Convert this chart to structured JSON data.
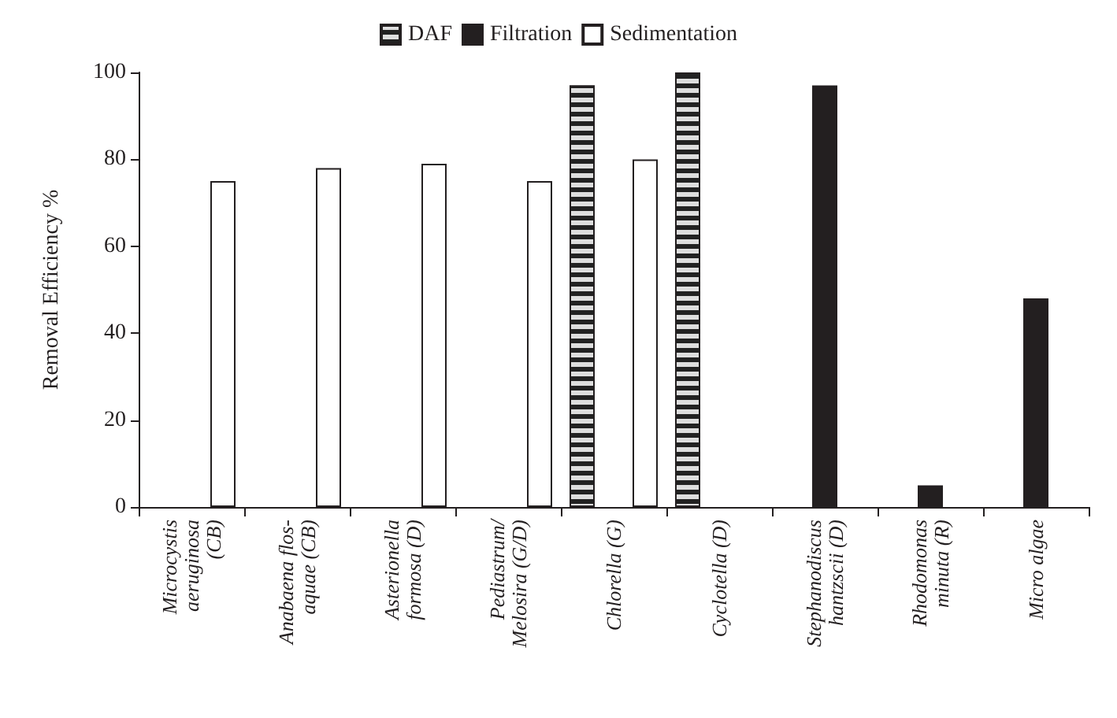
{
  "chart_data": {
    "type": "bar",
    "ylabel": "Removal Efficiency %",
    "categories": [
      "Microcystis\naeruginosa\n(CB)",
      "Anabaena flos-\naquae (CB)",
      "Asterionella\nformosa (D)",
      "Pediastrum/\nMelosira (G/D)",
      "Chlorella (G)",
      "Cyclotella (D)",
      "Stephanodiscus\nhantzscii (D)",
      "Rhodomonas\nminuta (R)",
      "Micro algae"
    ],
    "series": [
      {
        "name": "DAF",
        "color": "#222222",
        "values": [
          null,
          null,
          null,
          null,
          97,
          100,
          null,
          null,
          null
        ]
      },
      {
        "name": "Filtration",
        "color": "#231f20",
        "values": [
          null,
          null,
          null,
          null,
          null,
          null,
          97,
          5,
          48
        ]
      },
      {
        "name": "Sedimentation",
        "color": "#ffffff",
        "values": [
          75,
          78,
          79,
          75,
          80,
          null,
          null,
          null,
          null
        ]
      }
    ],
    "ylim": [
      0,
      100
    ],
    "yticks": [
      0,
      20,
      40,
      60,
      80,
      100
    ],
    "grid": false,
    "legend": "top"
  }
}
